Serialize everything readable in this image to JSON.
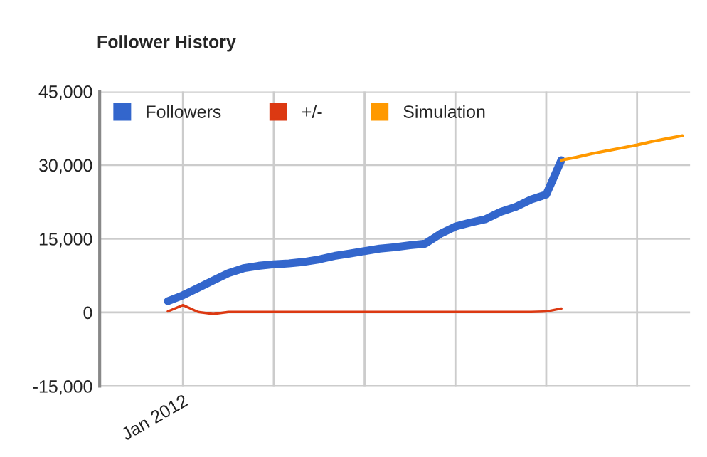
{
  "chart_data": {
    "type": "line",
    "title": "Follower History",
    "categories": [
      null,
      null,
      null,
      null,
      null,
      "Jan 2012",
      null,
      null,
      null,
      null,
      null,
      null,
      null,
      null,
      null,
      null,
      null,
      null,
      null,
      null,
      null,
      null,
      null,
      null,
      null,
      null,
      null,
      null,
      null,
      null,
      null,
      null,
      null,
      null,
      null,
      null,
      null,
      null,
      null
    ],
    "ylim": [
      -15000,
      45000
    ],
    "yticks": [
      {
        "value": -15000,
        "label": "-15,000"
      },
      {
        "value": 0,
        "label": "0"
      },
      {
        "value": 15000,
        "label": "15,000"
      },
      {
        "value": 30000,
        "label": "30,000"
      },
      {
        "value": 45000,
        "label": "45,000"
      }
    ],
    "grid": true,
    "legend": "top left",
    "series": [
      {
        "name": "Followers",
        "color": "#3366cc",
        "values": [
          null,
          null,
          null,
          null,
          2300,
          3500,
          5000,
          6500,
          8000,
          9000,
          9500,
          9800,
          10000,
          10300,
          10800,
          11500,
          12000,
          12500,
          13000,
          13300,
          13700,
          14000,
          16000,
          17500,
          18300,
          19000,
          20500,
          21500,
          23000,
          24000,
          31000,
          null,
          null,
          null,
          null,
          null,
          null,
          null,
          null
        ]
      },
      {
        "name": "+/-",
        "color": "#dc3912",
        "values": [
          null,
          null,
          null,
          null,
          200,
          1500,
          100,
          -300,
          100,
          100,
          100,
          100,
          100,
          100,
          100,
          100,
          100,
          100,
          100,
          100,
          100,
          100,
          100,
          100,
          100,
          100,
          100,
          100,
          100,
          200,
          800,
          null,
          null,
          null,
          null,
          null,
          null,
          null,
          null
        ]
      },
      {
        "name": "Simulation",
        "color": "#ff9900",
        "values": [
          null,
          null,
          null,
          null,
          null,
          null,
          null,
          null,
          null,
          null,
          null,
          null,
          null,
          null,
          null,
          null,
          null,
          null,
          null,
          null,
          null,
          null,
          null,
          null,
          null,
          null,
          null,
          null,
          null,
          null,
          31000,
          31600,
          32300,
          32900,
          33500,
          34100,
          34800,
          35400,
          36000
        ]
      }
    ]
  }
}
